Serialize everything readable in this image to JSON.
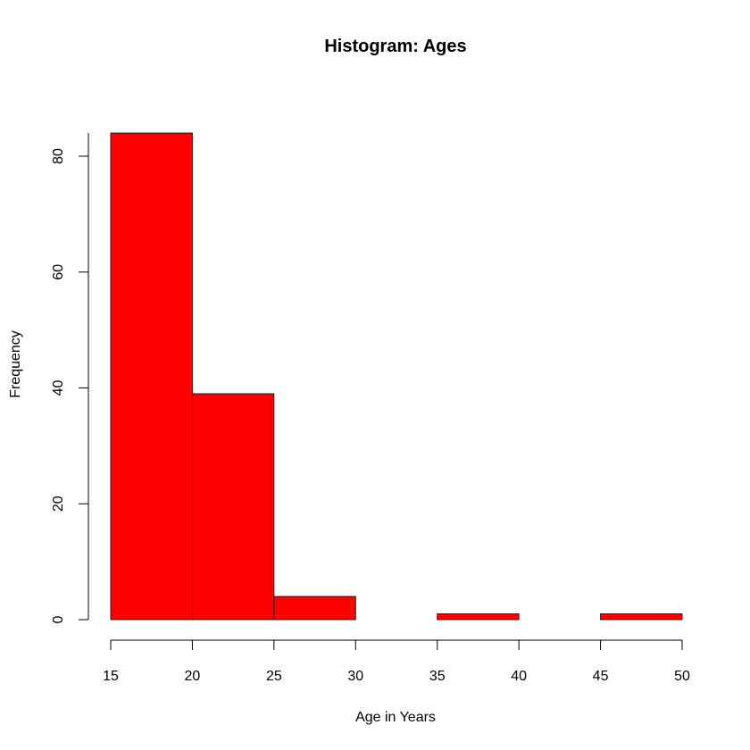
{
  "chart_data": {
    "type": "bar",
    "title": "Histogram: Ages",
    "xlabel": "Age in Years",
    "ylabel": "Frequency",
    "bins": [
      {
        "start": 15,
        "end": 20,
        "value": 84
      },
      {
        "start": 20,
        "end": 25,
        "value": 39
      },
      {
        "start": 25,
        "end": 30,
        "value": 4
      },
      {
        "start": 30,
        "end": 35,
        "value": 0
      },
      {
        "start": 35,
        "end": 40,
        "value": 1
      },
      {
        "start": 40,
        "end": 45,
        "value": 0
      },
      {
        "start": 45,
        "end": 50,
        "value": 1
      }
    ],
    "xlim": [
      15,
      50
    ],
    "ylim": [
      0,
      84
    ],
    "xticks": [
      15,
      20,
      25,
      30,
      35,
      40,
      45,
      50
    ],
    "yticks": [
      0,
      20,
      40,
      60,
      80
    ],
    "bar_color": "#ff0000",
    "grid": false
  }
}
